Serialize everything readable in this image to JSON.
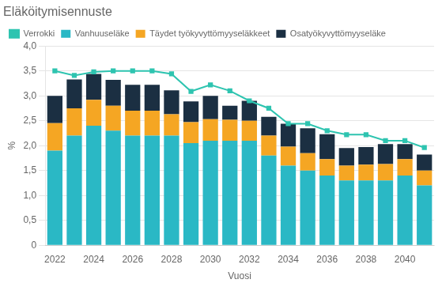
{
  "chart_data": {
    "type": "bar",
    "stacked": true,
    "title": "Eläköitymisennuste",
    "xlabel": "Vuosi",
    "ylabel": "%",
    "categories": [
      "2022",
      null,
      "2024",
      null,
      "2026",
      null,
      "2028",
      null,
      "2030",
      null,
      "2032",
      null,
      "2034",
      null,
      "2036",
      null,
      "2038",
      null,
      "2040",
      null
    ],
    "series": [
      {
        "name": "Vanhuuseläke",
        "type": "bar",
        "color": "#2ab8c5",
        "values": [
          1.9,
          2.2,
          2.4,
          2.3,
          2.2,
          2.2,
          2.2,
          2.05,
          2.1,
          2.1,
          2.1,
          1.8,
          1.6,
          1.5,
          1.4,
          1.3,
          1.3,
          1.3,
          1.4,
          1.2
        ]
      },
      {
        "name": "Täydet työkyvyttömyyseläkkeet",
        "type": "bar",
        "color": "#f5a623",
        "values": [
          0.55,
          0.55,
          0.52,
          0.5,
          0.5,
          0.5,
          0.43,
          0.42,
          0.43,
          0.42,
          0.4,
          0.4,
          0.38,
          0.35,
          0.33,
          0.3,
          0.32,
          0.33,
          0.33,
          0.3
        ]
      },
      {
        "name": "Osatyökyvyttömyyseläke",
        "type": "bar",
        "color": "#1b2f42",
        "values": [
          0.55,
          0.58,
          0.52,
          0.52,
          0.52,
          0.52,
          0.48,
          0.42,
          0.47,
          0.28,
          0.4,
          0.38,
          0.46,
          0.5,
          0.5,
          0.35,
          0.35,
          0.4,
          0.3,
          0.32
        ]
      },
      {
        "name": "Verrokki",
        "type": "line",
        "color": "#2ec4b0",
        "marker": "square",
        "line_style": "solid",
        "values": [
          3.5,
          3.41,
          3.48,
          3.5,
          3.5,
          3.5,
          3.44,
          3.09,
          3.22,
          3.1,
          2.9,
          2.75,
          2.44,
          2.44,
          2.3,
          2.22,
          2.22,
          2.1,
          2.1,
          1.96
        ]
      }
    ],
    "ylim": [
      0,
      4.0
    ],
    "yticks": [
      0,
      {
        "value": 0.5,
        "label": "0,5"
      },
      {
        "value": 1.0,
        "label": "1,0"
      },
      {
        "value": 1.5,
        "label": "1,5"
      },
      {
        "value": 2.0,
        "label": "2,0"
      },
      {
        "value": 2.5,
        "label": "2,5"
      },
      {
        "value": 3.0,
        "label": "3,0"
      },
      {
        "value": 3.5,
        "label": "3,5"
      },
      {
        "value": 4.0,
        "label": "4,0"
      }
    ],
    "grid": true,
    "legend": "upper left"
  }
}
